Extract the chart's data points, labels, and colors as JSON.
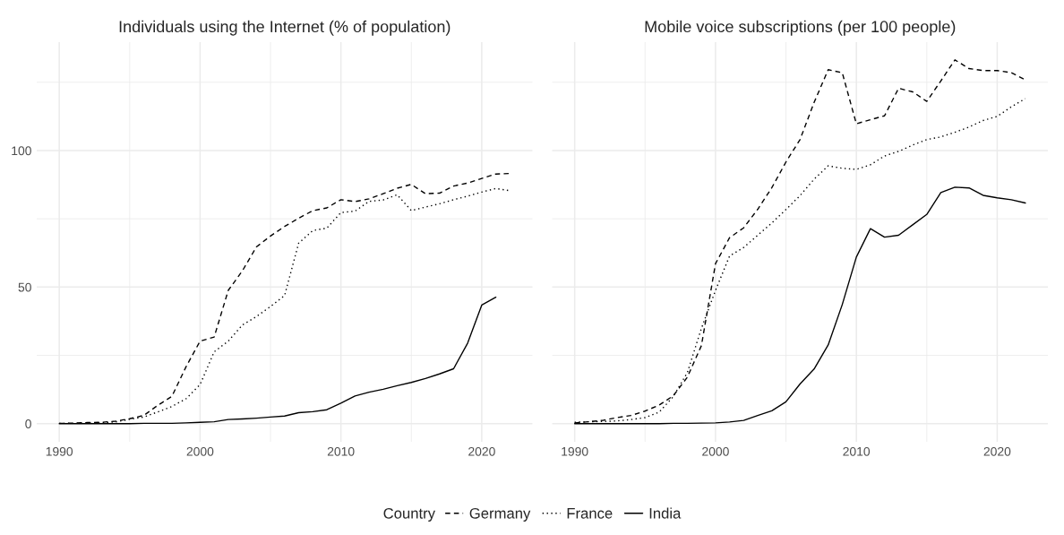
{
  "chart_data": [
    {
      "type": "line",
      "title": "Individuals using the Internet (% of population)",
      "legend": "bottom",
      "legend_title": "Country",
      "grid": true,
      "xlim": [
        1988.4,
        2023.6
      ],
      "ylim": [
        -6.65,
        139.7
      ],
      "xticks": [
        1990,
        2000,
        2010,
        2020
      ],
      "yticks": [
        0,
        50,
        100
      ],
      "series": [
        {
          "name": "Germany",
          "color": "#000000",
          "line_style": "dashed",
          "x": [
            1990,
            1991,
            1992,
            1993,
            1994,
            1995,
            1996,
            1997,
            1998,
            1999,
            2000,
            2001,
            2002,
            2003,
            2004,
            2005,
            2006,
            2007,
            2008,
            2009,
            2010,
            2011,
            2012,
            2013,
            2014,
            2015,
            2016,
            2017,
            2018,
            2019,
            2020,
            2021,
            2022
          ],
          "values": [
            0.1,
            0.2,
            0.4,
            0.5,
            0.9,
            1.8,
            3,
            6.7,
            10,
            20.8,
            30.2,
            31.7,
            48.8,
            55.9,
            64.7,
            68.7,
            72.2,
            75.2,
            78,
            79,
            82,
            81.3,
            82.3,
            84.2,
            86.2,
            87.6,
            84.2,
            84.4,
            87,
            88.1,
            89.8,
            91.4,
            91.6
          ]
        },
        {
          "name": "France",
          "color": "#000000",
          "line_style": "dotted",
          "x": [
            1990,
            1991,
            1992,
            1993,
            1994,
            1995,
            1996,
            1997,
            1998,
            1999,
            2000,
            2001,
            2002,
            2003,
            2004,
            2005,
            2006,
            2007,
            2008,
            2009,
            2010,
            2011,
            2012,
            2013,
            2014,
            2015,
            2016,
            2017,
            2018,
            2019,
            2020,
            2021,
            2022
          ],
          "values": [
            0.1,
            0.1,
            0.2,
            0.3,
            0.6,
            1.6,
            2.4,
            4.3,
            6.3,
            9.1,
            14.3,
            26.3,
            30.2,
            36.1,
            39.2,
            42.9,
            46.9,
            66.1,
            70.7,
            71.6,
            77.3,
            77.8,
            81.4,
            81.9,
            83.8,
            78,
            79.3,
            80.5,
            82,
            83.3,
            84.8,
            86.1,
            85.3
          ]
        },
        {
          "name": "India",
          "color": "#000000",
          "line_style": "solid",
          "x": [
            1990,
            1991,
            1992,
            1993,
            1994,
            1995,
            1996,
            1997,
            1998,
            1999,
            2000,
            2001,
            2002,
            2003,
            2004,
            2005,
            2006,
            2007,
            2008,
            2009,
            2010,
            2011,
            2012,
            2013,
            2014,
            2015,
            2016,
            2017,
            2018,
            2019,
            2020,
            2021
          ],
          "values": [
            0,
            0,
            0,
            0,
            0,
            0,
            0.1,
            0.1,
            0.1,
            0.3,
            0.5,
            0.7,
            1.5,
            1.7,
            2,
            2.4,
            2.8,
            4,
            4.4,
            5.1,
            7.5,
            10.1,
            11.5,
            12.6,
            13.9,
            15.1,
            16.5,
            18.2,
            20.1,
            29.5,
            43.4,
            46.3
          ]
        }
      ]
    },
    {
      "type": "line",
      "title": "Mobile voice subscriptions (per 100 people)",
      "grid": true,
      "tick_labels": "x",
      "xlim": [
        1988.4,
        2023.6
      ],
      "ylim": [
        -6.65,
        139.7
      ],
      "xticks": [
        1990,
        2000,
        2010,
        2020
      ],
      "yticks": [
        0,
        50,
        100
      ],
      "series": [
        {
          "color": "#000000",
          "line_style": "dashed",
          "x": [
            1990,
            1991,
            1992,
            1993,
            1994,
            1995,
            1996,
            1997,
            1998,
            1999,
            2000,
            2001,
            2002,
            2003,
            2004,
            2005,
            2006,
            2007,
            2008,
            2009,
            2010,
            2011,
            2012,
            2013,
            2014,
            2015,
            2016,
            2017,
            2018,
            2019,
            2020,
            2021,
            2022
          ],
          "values": [
            0.3,
            0.7,
            1.2,
            2.2,
            3,
            4.6,
            6.8,
            10.2,
            17,
            28.6,
            58.6,
            68.1,
            71.7,
            78.5,
            86.4,
            95.8,
            104,
            117.6,
            129.6,
            128.5,
            109.8,
            111.3,
            112.7,
            122.8,
            121.5,
            118,
            125.5,
            133.2,
            130,
            129.3,
            129.3,
            128.5,
            125.9
          ]
        },
        {
          "color": "#000000",
          "line_style": "dotted",
          "x": [
            1990,
            1991,
            1992,
            1993,
            1994,
            1995,
            1996,
            1997,
            1998,
            1999,
            2000,
            2001,
            2002,
            2003,
            2004,
            2005,
            2006,
            2007,
            2008,
            2009,
            2010,
            2011,
            2012,
            2013,
            2014,
            2015,
            2016,
            2017,
            2018,
            2019,
            2020,
            2021,
            2022
          ],
          "values": [
            0.5,
            0.7,
            0.8,
            1,
            1.5,
            2.2,
            4.2,
            9.9,
            18.7,
            34.9,
            48.8,
            61.4,
            64.5,
            69,
            73.5,
            78.4,
            83.5,
            89.5,
            94.4,
            93.5,
            93.1,
            94.8,
            98,
            99.7,
            102,
            104,
            105,
            106.7,
            108.6,
            111,
            112.5,
            116,
            119
          ]
        },
        {
          "color": "#000000",
          "line_style": "solid",
          "x": [
            1990,
            1991,
            1992,
            1993,
            1994,
            1995,
            1996,
            1997,
            1998,
            1999,
            2000,
            2001,
            2002,
            2003,
            2004,
            2005,
            2006,
            2007,
            2008,
            2009,
            2010,
            2011,
            2012,
            2013,
            2014,
            2015,
            2016,
            2017,
            2018,
            2019,
            2020,
            2021,
            2022
          ],
          "values": [
            0,
            0,
            0,
            0,
            0,
            0,
            0,
            0.1,
            0.1,
            0.2,
            0.3,
            0.6,
            1.2,
            3,
            4.7,
            8,
            14.5,
            20,
            28.8,
            43.6,
            61,
            71.4,
            68.3,
            69,
            72.8,
            76.6,
            84.6,
            86.6,
            86.3,
            83.6,
            82.7,
            82,
            80.8
          ]
        }
      ]
    }
  ]
}
